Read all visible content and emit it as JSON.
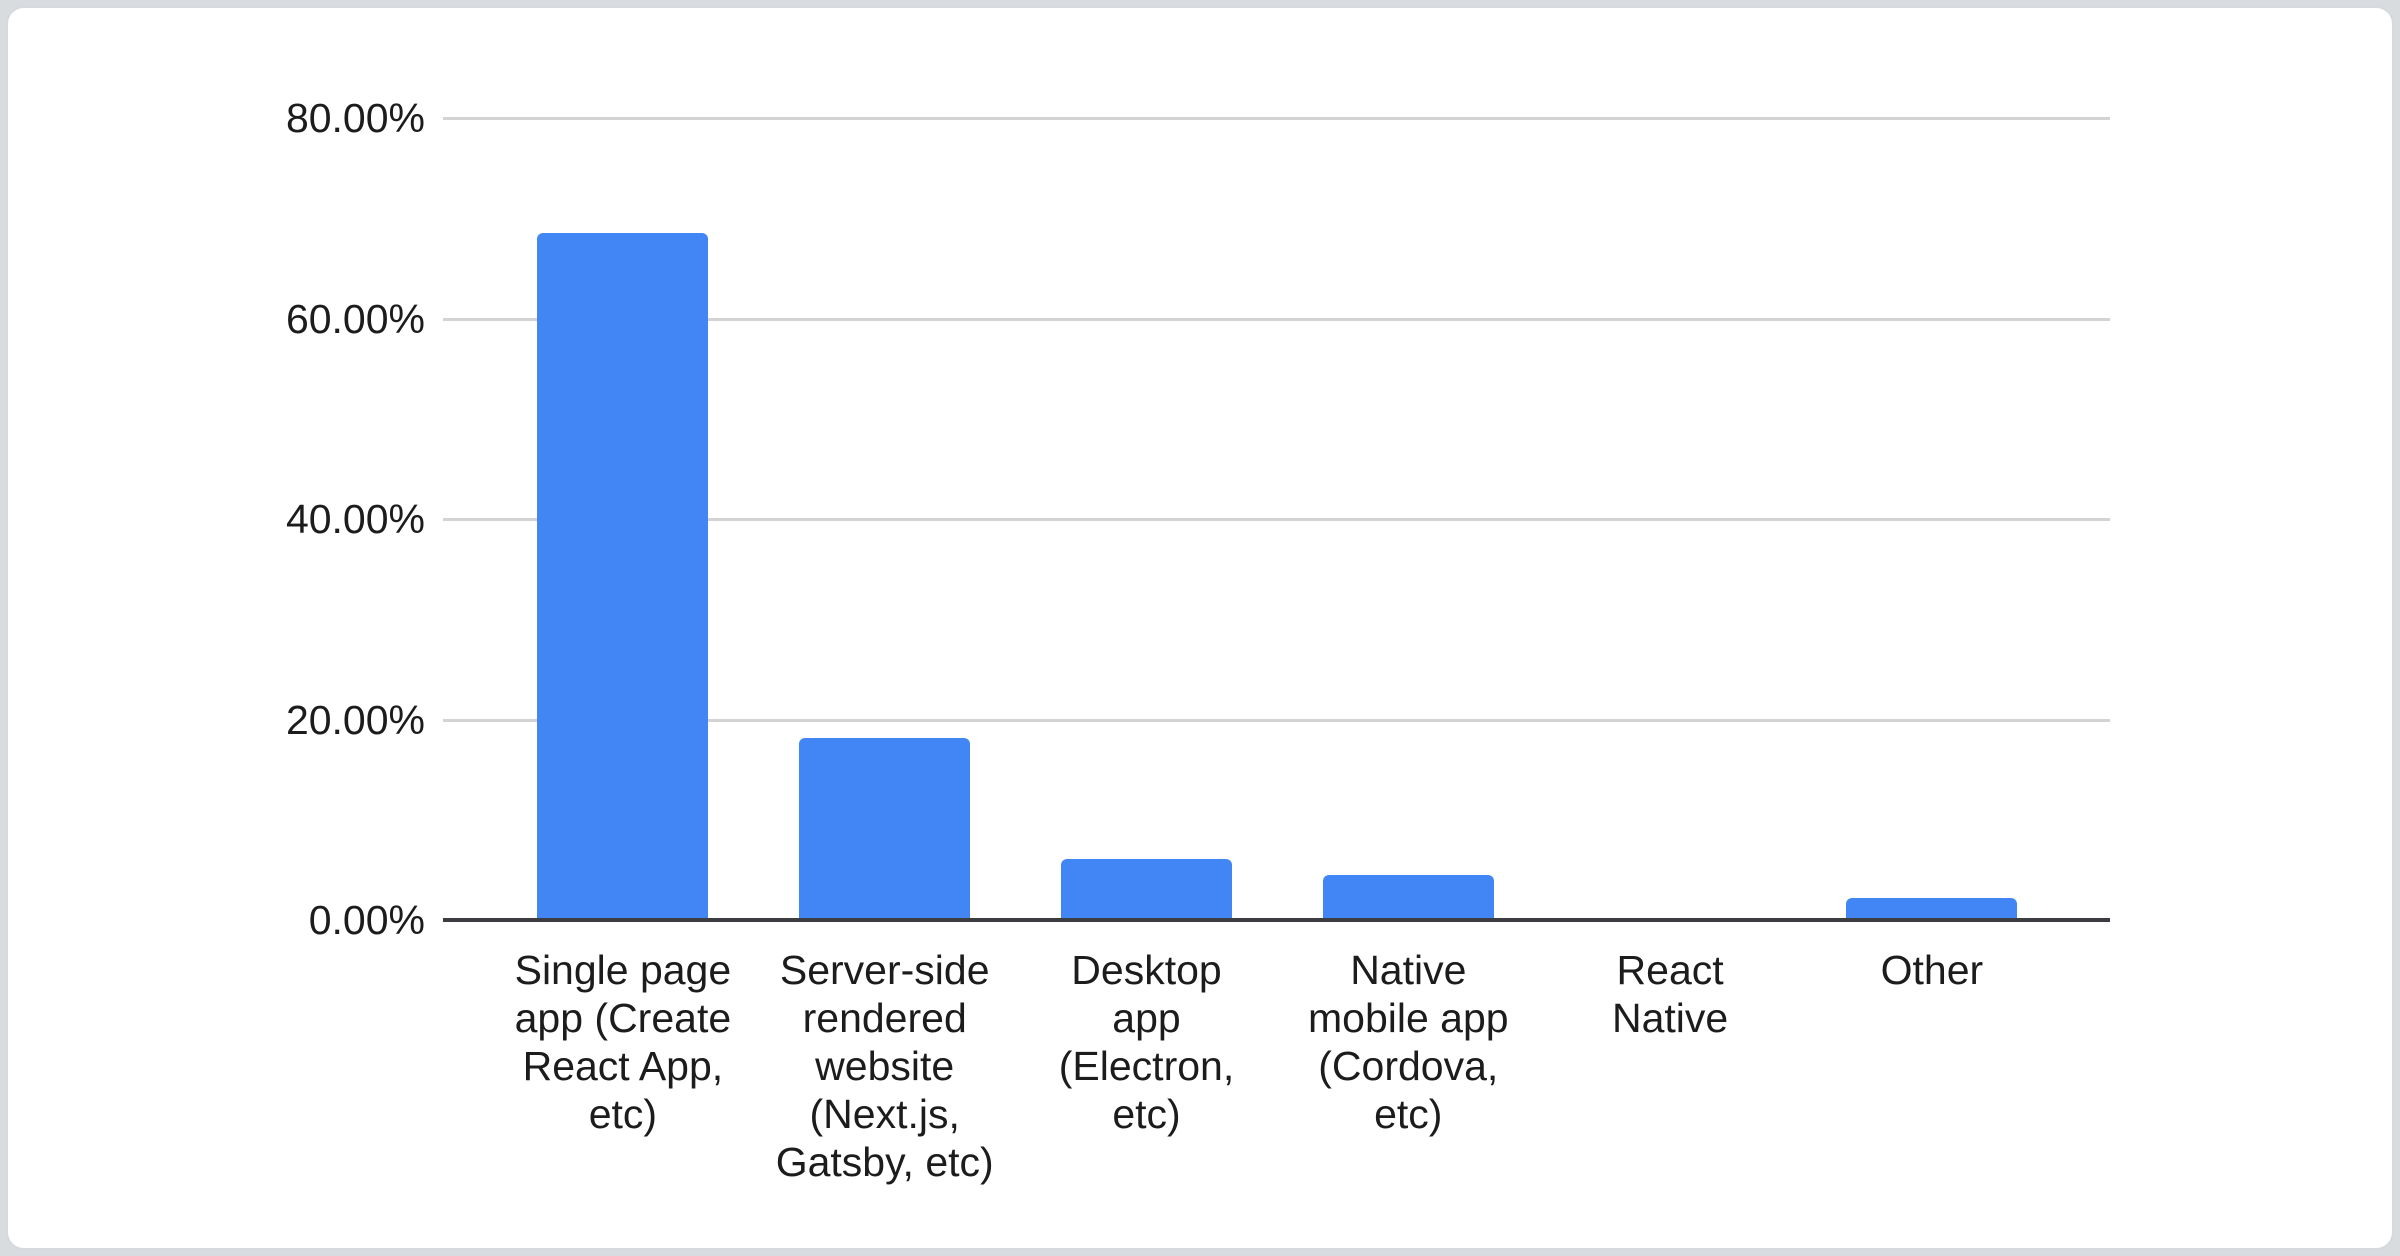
{
  "chart_data": {
    "type": "bar",
    "title": "",
    "xlabel": "",
    "ylabel": "",
    "unit": "%",
    "ylim": [
      0,
      80
    ],
    "grid": "horizontal",
    "legend": "none",
    "categories": [
      "Single page app (Create React App, etc)",
      "Server-side rendered website (Next.js, Gatsby, etc)",
      "Desktop app (Electron, etc)",
      "Native mobile app (Cordova, etc)",
      "React Native",
      "Other"
    ],
    "categories_wrapped": [
      "Single page\napp (Create\nReact App,\netc)",
      "Server-side\nrendered\nwebsite\n(Next.js,\nGatsby, etc)",
      "Desktop\napp\n(Electron,\netc)",
      "Native\nmobile app\n(Cordova,\netc)",
      "React\nNative",
      "Other"
    ],
    "values": [
      68.5,
      18.2,
      6.1,
      4.5,
      0,
      2.2
    ],
    "yticks": [
      {
        "value": 80,
        "label": "80.00%"
      },
      {
        "value": 60,
        "label": "60.00%"
      },
      {
        "value": 40,
        "label": "40.00%"
      },
      {
        "value": 20,
        "label": "20.00%"
      },
      {
        "value": 0,
        "label": "0.00%"
      }
    ],
    "colors": {
      "bar": "#4285F4",
      "gridline": "#d3d3d3",
      "axis": "#3b3d40",
      "text": "#1c1c1c",
      "card_background": "#ffffff",
      "card_border": "#d6d9dd"
    }
  }
}
